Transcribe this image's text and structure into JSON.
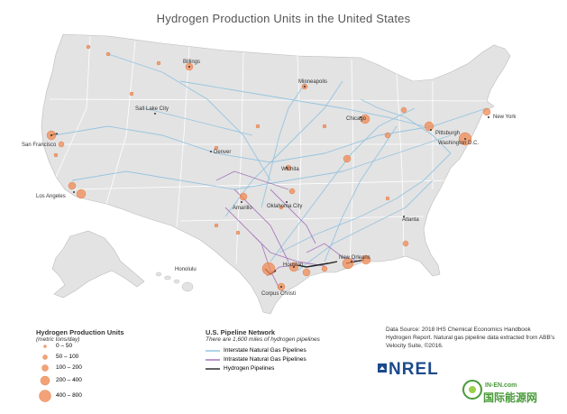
{
  "title": "Hydrogen Production Units in the United States",
  "colors": {
    "land": "#e3e3e3",
    "state_border": "#ffffff",
    "interstate_pipeline": "#8fc1e0",
    "intrastate_pipeline": "#a06cb8",
    "hydrogen_pipeline": "#222222",
    "production_unit": "#f08b55",
    "water": "#ffffff"
  },
  "cities": [
    {
      "name": "Billings"
    },
    {
      "name": "Minneapolis"
    },
    {
      "name": "Salt Lake City"
    },
    {
      "name": "San Francisco"
    },
    {
      "name": "Denver"
    },
    {
      "name": "Chicago"
    },
    {
      "name": "New York"
    },
    {
      "name": "Pittsburgh"
    },
    {
      "name": "Washington D.C."
    },
    {
      "name": "Wichita"
    },
    {
      "name": "Los Angeles"
    },
    {
      "name": "Amarillo"
    },
    {
      "name": "Oklahoma City"
    },
    {
      "name": "Atlanta"
    },
    {
      "name": "New Orleans"
    },
    {
      "name": "Houston"
    },
    {
      "name": "Corpus Christi"
    },
    {
      "name": "Honolulu"
    }
  ],
  "legend_units": {
    "title": "Hydrogen Production Units",
    "subtitle": "(metric tons/day)",
    "items": [
      {
        "label": "0 – 50"
      },
      {
        "label": "50 – 100"
      },
      {
        "label": "100 – 200"
      },
      {
        "label": "200 – 400"
      },
      {
        "label": "400 – 800"
      }
    ]
  },
  "legend_pipelines": {
    "title": "U.S. Pipeline Network",
    "subtitle": "There are 1,600 miles of hydrogen pipelines",
    "items": [
      {
        "label": "Interstate Natural Gas Pipelines"
      },
      {
        "label": "Intrastate Natural Gas Pipelines"
      },
      {
        "label": "Hydrogen Pipelines"
      }
    ]
  },
  "source_text": "Data Source: 2018 IHS Chemical Economics Handbook Hydrogen Report. Natural gas pipeline data extracted from ABB's Velocity Suite, ©2016.",
  "logo_text": "NREL",
  "watermark": {
    "url": "IN-EN.com",
    "name": "国际能源网"
  }
}
